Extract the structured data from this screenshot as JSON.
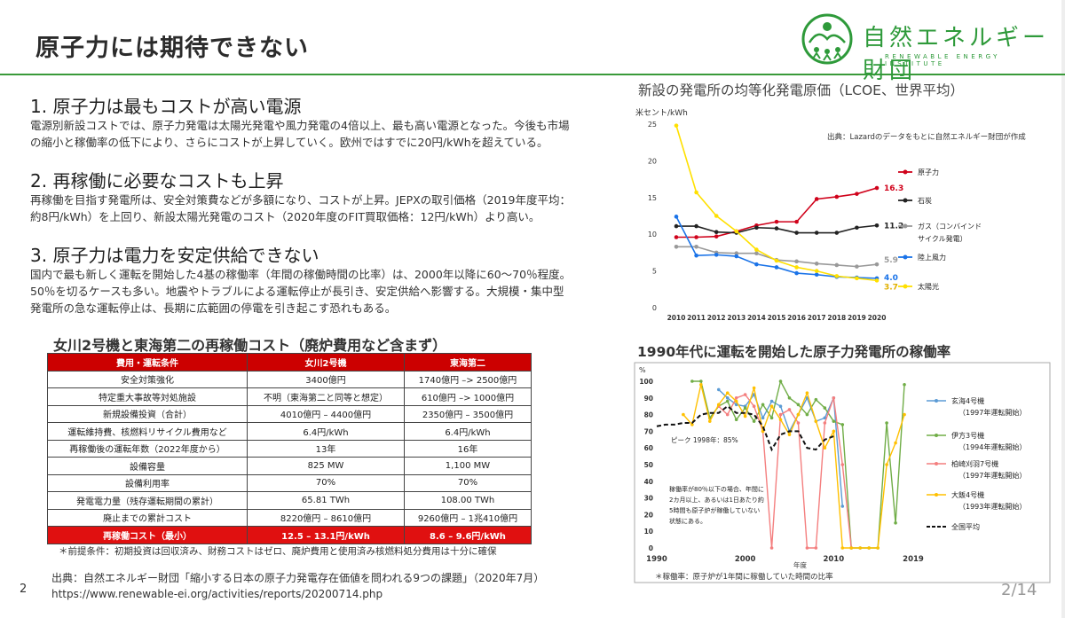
{
  "page": {
    "title": "原子力には期待できない",
    "page_number": "2",
    "page_count": "2/14"
  },
  "logo": {
    "name_jp": "自然エネルギー財団",
    "name_en": "RENEWABLE ENERGY INSTITUTE",
    "icon": "sun-people-logo-icon",
    "color": "#2e9a3a"
  },
  "sections": [
    {
      "heading": "1.  原子力は最もコストが高い電源",
      "lines": [
        "電源別新設コストでは、原子力発電は太陽光発電や風力発電の4倍以上、最も高い電源となった。今後も市場",
        "の縮小と稼働率の低下により、さらにコストが上昇していく。欧州ではすでに20円/kWhを超えている。"
      ]
    },
    {
      "heading": "2.  再稼働に必要なコストも上昇",
      "lines": [
        "再稼働を目指す発電所は、安全対策費などが多額になり、コストが上昇。JEPXの取引価格（2019年度平均：",
        "約8円/kWh）を上回り、新設太陽光発電のコスト（2020年度のFIT買取価格：12円/kWh）より高い。"
      ]
    },
    {
      "heading": "3.  原子力は電力を安定供給できない",
      "lines": [
        "国内で最も新しく運転を開始した4基の稼働率（年間の稼働時間の比率）は、2000年以降に60～70％程度。",
        "50％を切るケースも多い。地震やトラブルによる運転停止が長引き、安定供給へ影響する。大規模・集中型",
        "発電所の急な運転停止は、長期に広範囲の停電を引き起こす恐れもある。"
      ]
    }
  ],
  "table": {
    "title": "女川2号機と東海第二の再稼働コスト（廃炉費用など含まず）",
    "headers": [
      "費用・運転条件",
      "女川2号機",
      "東海第二"
    ],
    "rows": [
      [
        "安全対策強化",
        "3400億円",
        "1740億円 –> 2500億円"
      ],
      [
        "特定重大事故等対処施設",
        "不明（東海第二と同等と想定）",
        "610億円 –> 1000億円"
      ],
      [
        "新規設備投資（合計）",
        "4010億円 – 4400億円",
        "2350億円 – 3500億円"
      ],
      [
        "運転維持費、核燃料リサイクル費用など",
        "6.4円/kWh",
        "6.4円/kWh"
      ],
      [
        "再稼働後の運転年数（2022年度から）",
        "13年",
        "16年"
      ],
      [
        "設備容量",
        "825 MW",
        "1,100 MW"
      ],
      [
        "設備利用率",
        "70%",
        "70%"
      ],
      [
        "発電電力量（残存運転期間の累計）",
        "65.81 TWh",
        "108.00 TWh"
      ],
      [
        "廃止までの累計コスト",
        "8220億円 – 8610億円",
        "9260億円 – 1兆410億円"
      ]
    ],
    "total": [
      "再稼働コスト（最小）",
      "12.5 – 13.1円/kWh",
      "8.6 – 9.6円/kWh"
    ],
    "footnote": "＊前提条件：初期投資は回収済み、財務コストはゼロ、廃炉費用と使用済み核燃料処分費用は十分に確保",
    "header_color": "#cc0000"
  },
  "sources": {
    "line1": "出典：自然エネルギー財団「縮小する日本の原子力発電存在価値を問われる9つの課題」（2020年7月）",
    "line2": "https://www.renewable-ei.org/activities/reports/20200714.php"
  },
  "chart_data": [
    {
      "type": "line",
      "title": "新設の発電所の均等化発電原価（LCOE、世界平均）",
      "ylabel": "米セント/kWh",
      "source_note": "出典：Lazardのデータをもとに自然エネルギー財団が作成",
      "x": [
        2010,
        2011,
        2012,
        2013,
        2014,
        2015,
        2016,
        2017,
        2018,
        2019,
        2020
      ],
      "ylim": [
        0,
        25
      ],
      "yticks": [
        0,
        5,
        10,
        15,
        20,
        25
      ],
      "legend_position": "right",
      "series": [
        {
          "name": "原子力",
          "color": "#d0021b",
          "end_label": "16.3",
          "values": [
            9.6,
            9.6,
            9.7,
            10.4,
            11.2,
            11.7,
            11.7,
            14.8,
            15.1,
            15.5,
            16.3
          ]
        },
        {
          "name": "石炭",
          "color": "#222222",
          "end_label": "11.2",
          "values": [
            11.1,
            11.1,
            10.3,
            10.2,
            10.9,
            10.8,
            10.2,
            10.2,
            10.2,
            10.9,
            11.2
          ]
        },
        {
          "name": "ガス（コンバインド サイクル発電）",
          "color": "#999999",
          "end_label": "5.9",
          "values": [
            8.3,
            8.3,
            7.5,
            7.4,
            7.4,
            6.5,
            6.3,
            6.0,
            5.8,
            5.6,
            5.9
          ]
        },
        {
          "name": "陸上風力",
          "color": "#1a73e8",
          "end_label": "4.0",
          "values": [
            12.4,
            7.1,
            7.2,
            7.0,
            5.9,
            5.5,
            4.7,
            4.5,
            4.2,
            4.1,
            4.0
          ]
        },
        {
          "name": "太陽光",
          "color": "#ffe000",
          "end_label": "3.7",
          "values": [
            24.8,
            15.7,
            12.5,
            10.4,
            7.9,
            6.4,
            5.5,
            5.0,
            4.3,
            4.0,
            3.7
          ]
        }
      ]
    },
    {
      "type": "line",
      "title": "1990年代に運転を開始した原子力発電所の稼働率",
      "ylabel": "%",
      "xlabel": "年度",
      "xlim": [
        1990,
        2019
      ],
      "xticks": [
        1990,
        2000,
        2010,
        2019
      ],
      "ylim": [
        0,
        100
      ],
      "yticks": [
        0,
        10,
        20,
        30,
        40,
        50,
        60,
        70,
        80,
        90,
        100
      ],
      "peak_label": "ピーク 1998年：85%",
      "annotation": [
        "稼働率が80％以下の場合、年間に",
        "2カ月以上、あるいは1日あたり約",
        "5時間も原子炉が稼働していない",
        "状態にある。"
      ],
      "footnote": "＊稼働率：原子炉が1年間に稼働していた時間の比率",
      "series": [
        {
          "name": "玄海4号機",
          "sub": "（1997年運転開始）",
          "color": "#5b9bd5",
          "x": [
            1997,
            1998,
            1999,
            2000,
            2001,
            2002,
            2003,
            2004,
            2005,
            2006,
            2007,
            2008,
            2009,
            2010,
            2011
          ],
          "values": [
            95,
            90,
            86,
            85,
            92,
            78,
            88,
            85,
            70,
            80,
            90,
            76,
            78,
            90,
            25
          ]
        },
        {
          "name": "伊方3号機",
          "sub": "（1994年運転開始）",
          "color": "#70ad47",
          "x": [
            1994,
            1995,
            1996,
            1997,
            1998,
            1999,
            2000,
            2001,
            2002,
            2003,
            2004,
            2005,
            2006,
            2007,
            2008,
            2009,
            2010,
            2011,
            2012,
            2013,
            2014,
            2015,
            2016,
            2017,
            2018
          ],
          "values": [
            100,
            100,
            78,
            85,
            88,
            77,
            84,
            76,
            86,
            78,
            100,
            90,
            86,
            80,
            89,
            84,
            76,
            74,
            0,
            0,
            0,
            0,
            75,
            15,
            98
          ]
        },
        {
          "name": "柏崎刈羽7号機",
          "sub": "（1997年運転開始）",
          "color": "#f47f7f",
          "x": [
            1997,
            1998,
            1999,
            2000,
            2001,
            2002,
            2003,
            2004,
            2005,
            2006,
            2007,
            2008,
            2009,
            2010,
            2011,
            2012
          ],
          "values": [
            85,
            80,
            90,
            92,
            85,
            70,
            0,
            80,
            83,
            75,
            0,
            0,
            75,
            90,
            50,
            0
          ]
        },
        {
          "name": "大飯4号機",
          "sub": "（1993年運転開始）",
          "color": "#ffc000",
          "x": [
            1993,
            1994,
            1995,
            1996,
            1997,
            1998,
            1999,
            2000,
            2001,
            2002,
            2003,
            2004,
            2005,
            2006,
            2007,
            2008,
            2009,
            2010,
            2011,
            2012,
            2013,
            2014,
            2015,
            2016,
            2017,
            2018
          ],
          "values": [
            80,
            74,
            98,
            76,
            86,
            93,
            88,
            79,
            96,
            70,
            85,
            77,
            68,
            80,
            93,
            76,
            60,
            70,
            0,
            0,
            0,
            0,
            0,
            50,
            63,
            80
          ]
        },
        {
          "name": "全国平均",
          "sub": "",
          "color": "#111111",
          "dashed": true,
          "x": [
            1990,
            1991,
            1992,
            1993,
            1994,
            1995,
            1996,
            1997,
            1998,
            1999,
            2000,
            2001,
            2002,
            2003,
            2004,
            2005,
            2006,
            2007,
            2008,
            2009,
            2010
          ],
          "values": [
            73,
            74,
            74,
            75,
            75,
            80,
            81,
            81,
            85,
            81,
            81,
            80,
            73,
            59,
            68,
            70,
            70,
            60,
            59,
            65,
            67
          ]
        }
      ]
    }
  ]
}
